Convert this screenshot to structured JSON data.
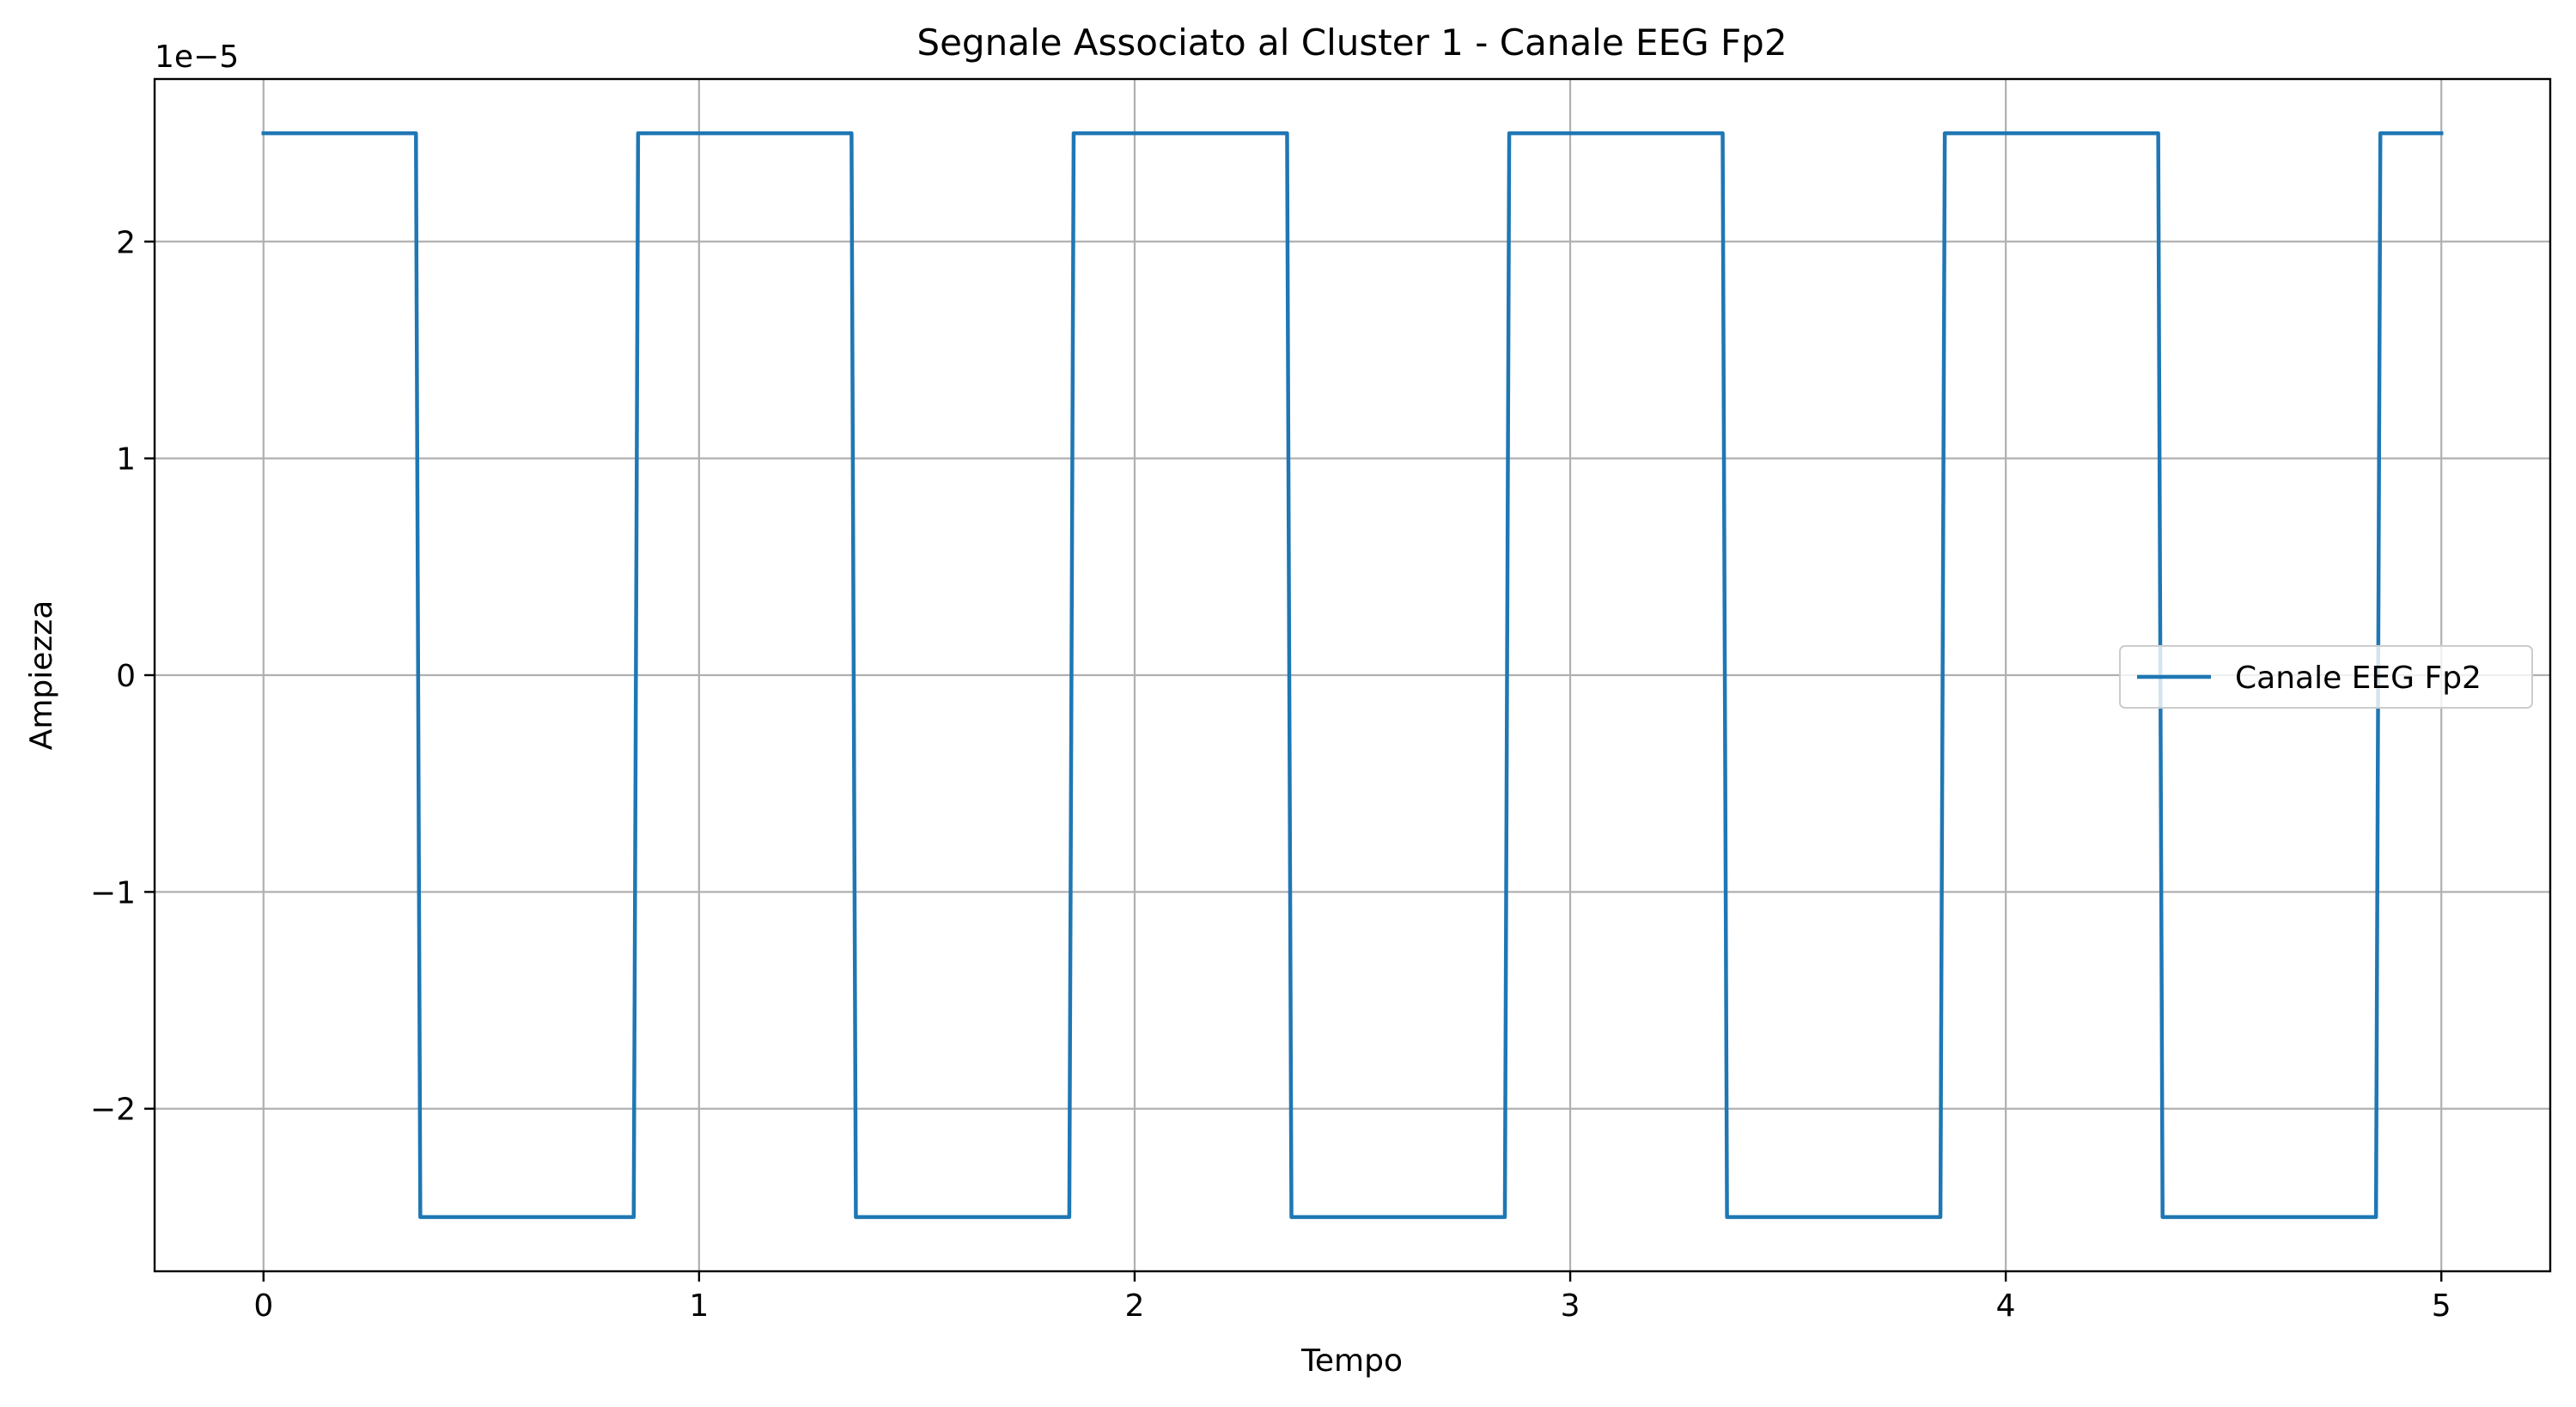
{
  "chart_data": {
    "type": "line",
    "title": "Segnale Associato al Cluster 1 - Canale EEG Fp2",
    "xlabel": "Tempo",
    "ylabel": "Ampiezza",
    "y_offset_text": "1e−5",
    "xlim": [
      -0.25,
      5.25
    ],
    "ylim": [
      -2.75e-05,
      2.75e-05
    ],
    "grid": true,
    "legend_position": "center-right",
    "x_ticks": [
      0,
      1,
      2,
      3,
      4,
      5
    ],
    "x_tick_labels": [
      "0",
      "1",
      "2",
      "3",
      "4",
      "5"
    ],
    "y_ticks": [
      -2e-05,
      -1e-05,
      0,
      1e-05,
      2e-05
    ],
    "y_tick_labels": [
      "−2",
      "−1",
      "0",
      "1",
      "2"
    ],
    "series": [
      {
        "name": "Canale EEG Fp2",
        "color": "#1f77b4",
        "x": [
          0,
          0.35,
          0.36,
          0.85,
          0.86,
          1.35,
          1.36,
          1.85,
          1.86,
          2.35,
          2.36,
          2.85,
          2.86,
          3.35,
          3.36,
          3.85,
          3.86,
          4.35,
          4.36,
          4.85,
          4.86,
          5.0
        ],
        "y": [
          2.5e-05,
          2.5e-05,
          -2.5e-05,
          -2.5e-05,
          2.5e-05,
          2.5e-05,
          -2.5e-05,
          -2.5e-05,
          2.5e-05,
          2.5e-05,
          -2.5e-05,
          -2.5e-05,
          2.5e-05,
          2.5e-05,
          -2.5e-05,
          -2.5e-05,
          2.5e-05,
          2.5e-05,
          -2.5e-05,
          -2.5e-05,
          2.5e-05,
          2.5e-05
        ]
      }
    ]
  }
}
